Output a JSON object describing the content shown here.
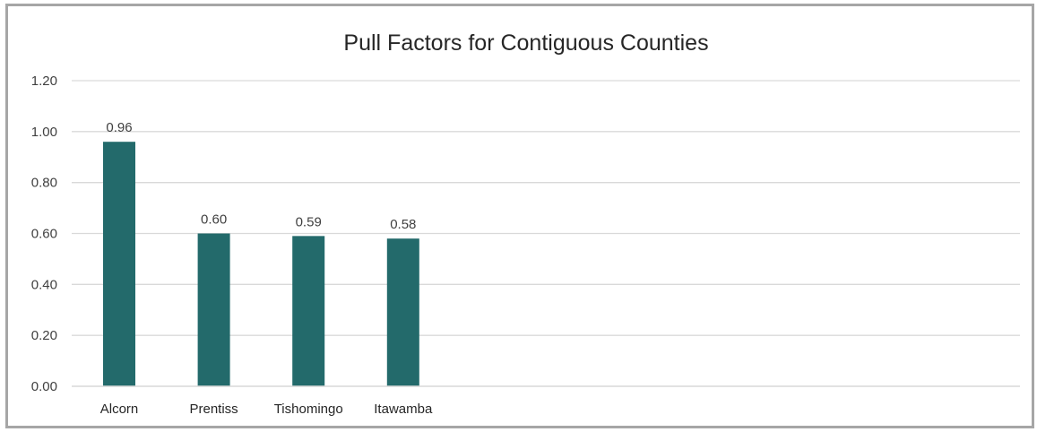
{
  "chart_data": {
    "type": "bar",
    "title": "Pull Factors for Contiguous Counties",
    "categories": [
      "Alcorn",
      "Prentiss",
      "Tishomingo",
      "Itawamba"
    ],
    "values": [
      0.96,
      0.6,
      0.59,
      0.58
    ],
    "data_labels": [
      "0.96",
      "0.60",
      "0.59",
      "0.58"
    ],
    "y_ticks": [
      "0.00",
      "0.20",
      "0.40",
      "0.60",
      "0.80",
      "1.00",
      "1.20"
    ],
    "ylim": [
      0,
      1.2
    ],
    "xlabel": "",
    "ylabel": "",
    "grid": true,
    "legend": "none",
    "colors": {
      "bar": "#236a6b",
      "grid": "#d9d9d9",
      "frame": "#a6a6a6"
    }
  }
}
